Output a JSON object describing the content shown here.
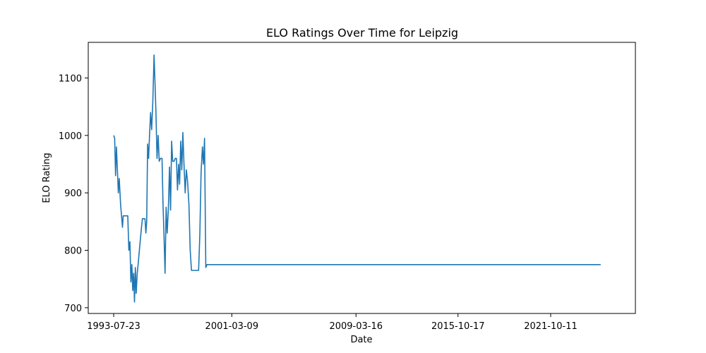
{
  "chart_data": {
    "type": "line",
    "title": "ELO Ratings Over Time for Leipzig",
    "xlabel": "Date",
    "ylabel": "ELO Rating",
    "x_ticks": [
      "1993-07-23",
      "2001-03-09",
      "2009-03-16",
      "2015-10-17",
      "2021-10-11"
    ],
    "y_ticks": [
      700,
      800,
      900,
      1000,
      1100
    ],
    "xlim": [
      "1991-12-01",
      "2027-04-01"
    ],
    "ylim": [
      690,
      1162
    ],
    "grid": false,
    "series": [
      {
        "color": "#1f77b4",
        "points": [
          [
            "1993-07-23",
            1000
          ],
          [
            "1993-08-14",
            995
          ],
          [
            "1993-09-05",
            930
          ],
          [
            "1993-09-25",
            980
          ],
          [
            "1993-10-18",
            940
          ],
          [
            "1993-11-10",
            900
          ],
          [
            "1993-12-01",
            925
          ],
          [
            "1994-01-01",
            880
          ],
          [
            "1994-02-15",
            840
          ],
          [
            "1994-03-05",
            860
          ],
          [
            "1994-06-20",
            860
          ],
          [
            "1994-07-15",
            800
          ],
          [
            "1994-08-10",
            815
          ],
          [
            "1994-09-01",
            745
          ],
          [
            "1994-09-25",
            775
          ],
          [
            "1994-10-15",
            730
          ],
          [
            "1994-11-05",
            760
          ],
          [
            "1994-11-25",
            710
          ],
          [
            "1994-12-15",
            770
          ],
          [
            "1995-01-05",
            725
          ],
          [
            "1995-01-30",
            760
          ],
          [
            "1995-02-25",
            780
          ],
          [
            "1995-03-20",
            800
          ],
          [
            "1995-05-10",
            840
          ],
          [
            "1995-06-01",
            855
          ],
          [
            "1995-08-01",
            855
          ],
          [
            "1995-08-20",
            830
          ],
          [
            "1995-09-10",
            850
          ],
          [
            "1995-10-01",
            985
          ],
          [
            "1995-10-25",
            960
          ],
          [
            "1995-11-15",
            1000
          ],
          [
            "1995-12-10",
            1040
          ],
          [
            "1996-01-05",
            1010
          ],
          [
            "1996-02-01",
            1060
          ],
          [
            "1996-03-01",
            1140
          ],
          [
            "1996-03-25",
            1090
          ],
          [
            "1996-04-15",
            1040
          ],
          [
            "1996-05-10",
            960
          ],
          [
            "1996-06-05",
            1000
          ],
          [
            "1996-07-01",
            955
          ],
          [
            "1996-08-01",
            960
          ],
          [
            "1996-09-05",
            960
          ],
          [
            "1996-09-28",
            880
          ],
          [
            "1996-10-20",
            830
          ],
          [
            "1996-11-15",
            760
          ],
          [
            "1996-12-10",
            875
          ],
          [
            "1997-01-05",
            830
          ],
          [
            "1997-02-01",
            870
          ],
          [
            "1997-03-01",
            945
          ],
          [
            "1997-03-25",
            870
          ],
          [
            "1997-04-20",
            990
          ],
          [
            "1997-05-15",
            955
          ],
          [
            "1997-06-15",
            955
          ],
          [
            "1997-07-15",
            960
          ],
          [
            "1997-08-10",
            960
          ],
          [
            "1997-09-05",
            905
          ],
          [
            "1997-10-01",
            950
          ],
          [
            "1997-10-25",
            915
          ],
          [
            "1997-11-20",
            990
          ],
          [
            "1997-12-15",
            940
          ],
          [
            "1998-01-10",
            1005
          ],
          [
            "1998-02-05",
            950
          ],
          [
            "1998-03-05",
            900
          ],
          [
            "1998-04-01",
            940
          ],
          [
            "1998-05-01",
            920
          ],
          [
            "1998-06-01",
            880
          ],
          [
            "1998-07-01",
            800
          ],
          [
            "1998-08-01",
            765
          ],
          [
            "1998-10-01",
            765
          ],
          [
            "1999-01-15",
            765
          ],
          [
            "1999-02-15",
            830
          ],
          [
            "1999-03-15",
            935
          ],
          [
            "1999-04-15",
            980
          ],
          [
            "1999-05-10",
            950
          ],
          [
            "1999-06-05",
            995
          ],
          [
            "1999-07-05",
            770
          ],
          [
            "1999-08-01",
            775
          ],
          [
            "2025-01-01",
            775
          ]
        ]
      }
    ]
  }
}
